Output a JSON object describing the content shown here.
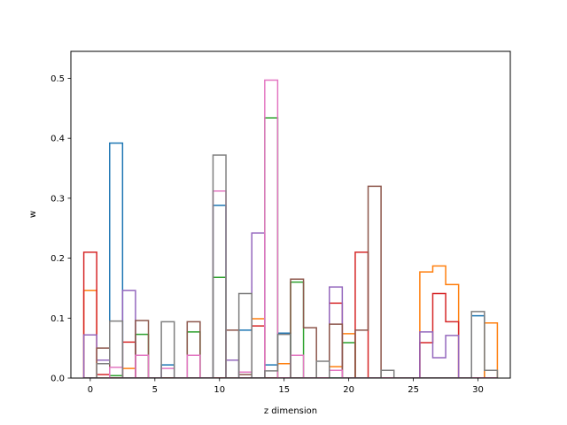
{
  "chart_data": {
    "type": "step",
    "xlabel": "z dimension",
    "ylabel": "w",
    "xlim": [
      -1.5,
      32.5
    ],
    "ylim": [
      0,
      0.545
    ],
    "xticks": [
      0,
      5,
      10,
      15,
      20,
      25,
      30
    ],
    "yticks": [
      0.0,
      0.1,
      0.2,
      0.3,
      0.4,
      0.5
    ],
    "grid": false,
    "colors": [
      "#1f77b4",
      "#ff7f0e",
      "#2ca02c",
      "#d62728",
      "#9467bd",
      "#8c564b",
      "#e377c2",
      "#7f7f7f"
    ],
    "series": [
      {
        "values": [
          0.0,
          0.0,
          0.392,
          0.0,
          0.0,
          0.0,
          0.022,
          0.0,
          0.0,
          0.0,
          0.288,
          0.0,
          0.08,
          0.0,
          0.022,
          0.075,
          0.0,
          0.0,
          0.0,
          0.0,
          0.0,
          0.0,
          0.0,
          0.0,
          0.0,
          0.0,
          0.0,
          0.0,
          0.0,
          0.0,
          0.104,
          0.0
        ]
      },
      {
        "values": [
          0.146,
          0.0,
          0.0,
          0.016,
          0.0,
          0.0,
          0.0,
          0.0,
          0.0,
          0.0,
          0.0,
          0.0,
          0.0,
          0.099,
          0.0,
          0.024,
          0.0,
          0.0,
          0.0,
          0.019,
          0.074,
          0.0,
          0.0,
          0.0,
          0.0,
          0.0,
          0.177,
          0.187,
          0.156,
          0.0,
          0.0,
          0.092
        ]
      },
      {
        "values": [
          0.0,
          0.0,
          0.004,
          0.0,
          0.073,
          0.0,
          0.0,
          0.0,
          0.077,
          0.0,
          0.168,
          0.0,
          0.0,
          0.0,
          0.434,
          0.0,
          0.16,
          0.0,
          0.0,
          0.0,
          0.059,
          0.0,
          0.0,
          0.0,
          0.0,
          0.0,
          0.0,
          0.0,
          0.0,
          0.0,
          0.0,
          0.0
        ]
      },
      {
        "values": [
          0.21,
          0.006,
          0.0,
          0.06,
          0.0,
          0.0,
          0.0,
          0.0,
          0.0,
          0.0,
          0.0,
          0.0,
          0.0,
          0.087,
          0.0,
          0.0,
          0.0,
          0.0,
          0.0,
          0.125,
          0.0,
          0.21,
          0.0,
          0.0,
          0.0,
          0.0,
          0.059,
          0.141,
          0.094,
          0.0,
          0.0,
          0.0
        ]
      },
      {
        "values": [
          0.072,
          0.03,
          0.0,
          0.146,
          0.0,
          0.0,
          0.0,
          0.0,
          0.0,
          0.0,
          0.0,
          0.03,
          0.0,
          0.242,
          0.0,
          0.0,
          0.0,
          0.0,
          0.0,
          0.152,
          0.0,
          0.0,
          0.0,
          0.0,
          0.0,
          0.0,
          0.077,
          0.034,
          0.071,
          0.0,
          0.0,
          0.0
        ]
      },
      {
        "values": [
          0.0,
          0.05,
          0.0,
          0.0,
          0.096,
          0.0,
          0.0,
          0.0,
          0.094,
          0.0,
          0.0,
          0.08,
          0.006,
          0.0,
          0.0,
          0.0,
          0.165,
          0.084,
          0.0,
          0.09,
          0.0,
          0.08,
          0.32,
          0.0,
          0.0,
          0.0,
          0.0,
          0.0,
          0.0,
          0.0,
          0.0,
          0.0
        ]
      },
      {
        "values": [
          0.0,
          0.0,
          0.018,
          0.0,
          0.038,
          0.0,
          0.016,
          0.0,
          0.038,
          0.0,
          0.312,
          0.0,
          0.01,
          0.0,
          0.497,
          0.0,
          0.038,
          0.0,
          0.0,
          0.013,
          0.0,
          0.0,
          0.0,
          0.0,
          0.0,
          0.0,
          0.0,
          0.0,
          0.0,
          0.0,
          0.0,
          0.0
        ]
      },
      {
        "values": [
          0.0,
          0.024,
          0.095,
          0.0,
          0.0,
          0.0,
          0.094,
          0.0,
          0.0,
          0.0,
          0.372,
          0.0,
          0.141,
          0.0,
          0.012,
          0.073,
          0.0,
          0.0,
          0.028,
          0.0,
          0.0,
          0.0,
          0.0,
          0.013,
          0.0,
          0.0,
          0.0,
          0.0,
          0.0,
          0.0,
          0.111,
          0.013
        ]
      }
    ]
  }
}
